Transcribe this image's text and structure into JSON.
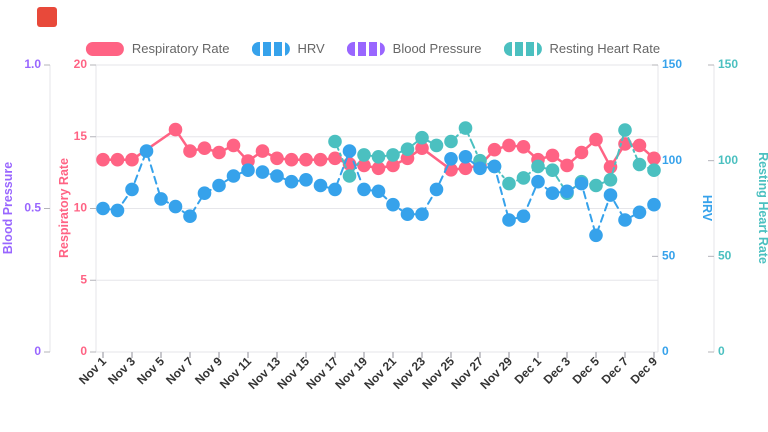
{
  "page": {
    "background": "#ffffff"
  },
  "indicator": {
    "color": "#e8493a"
  },
  "legend_position": "top",
  "chart_data": {
    "type": "line",
    "x": [
      "Nov 1",
      "Nov 2",
      "Nov 3",
      "Nov 4",
      "Nov 5",
      "Nov 6",
      "Nov 7",
      "Nov 8",
      "Nov 9",
      "Nov 10",
      "Nov 11",
      "Nov 12",
      "Nov 13",
      "Nov 14",
      "Nov 15",
      "Nov 16",
      "Nov 17",
      "Nov 18",
      "Nov 19",
      "Nov 20",
      "Nov 21",
      "Nov 22",
      "Nov 23",
      "Nov 24",
      "Nov 25",
      "Nov 26",
      "Nov 27",
      "Nov 28",
      "Nov 29",
      "Nov 30",
      "Dec 1",
      "Dec 2",
      "Dec 3",
      "Dec 4",
      "Dec 5",
      "Dec 6",
      "Dec 7",
      "Dec 8",
      "Dec 9"
    ],
    "x_tick_labels": [
      "Nov 1",
      "Nov 3",
      "Nov 5",
      "Nov 7",
      "Nov 9",
      "Nov 11",
      "Nov 13",
      "Nov 15",
      "Nov 17",
      "Nov 19",
      "Nov 21",
      "Nov 23",
      "Nov 25",
      "Nov 27",
      "Nov 29",
      "Dec 1",
      "Dec 3",
      "Dec 5",
      "Dec 7",
      "Dec 9"
    ],
    "grid": true,
    "series": [
      {
        "name": "Respiratory Rate",
        "color": "#ff6384",
        "line": "solid",
        "axis": "respiratory_rate",
        "values": [
          13.4,
          13.4,
          13.4,
          null,
          null,
          15.5,
          14.0,
          14.2,
          13.9,
          14.4,
          13.3,
          14.0,
          13.5,
          13.4,
          13.4,
          13.4,
          13.5,
          13.1,
          13.0,
          12.8,
          13.0,
          13.5,
          14.2,
          null,
          12.7,
          12.8,
          13.0,
          14.1,
          14.4,
          14.3,
          13.4,
          13.7,
          13.0,
          13.9,
          14.8,
          12.9,
          14.5,
          14.4,
          13.5
        ]
      },
      {
        "name": "HRV",
        "color": "#36a2eb",
        "line": "dashed",
        "axis": "hrv",
        "values": [
          75,
          74,
          85,
          105,
          80,
          76,
          71,
          83,
          87,
          92,
          95,
          94,
          92,
          89,
          90,
          87,
          85,
          105,
          85,
          84,
          77,
          72,
          72,
          85,
          101,
          102,
          96,
          97,
          69,
          71,
          89,
          83,
          84,
          88,
          61,
          82,
          69,
          73,
          77
        ]
      },
      {
        "name": "Blood Pressure",
        "color": "#9966ff",
        "line": "dashed",
        "axis": "blood_pressure",
        "values": []
      },
      {
        "name": "Resting Heart Rate",
        "color": "#4bc0c0",
        "line": "dashdot",
        "axis": "resting_heart_rate",
        "values": [
          null,
          null,
          null,
          null,
          null,
          null,
          null,
          null,
          null,
          null,
          null,
          null,
          null,
          null,
          null,
          null,
          110,
          92,
          103,
          102,
          103,
          106,
          112,
          108,
          110,
          117,
          100,
          97,
          88,
          91,
          97,
          95,
          83,
          89,
          87,
          90,
          116,
          98,
          95
        ]
      }
    ],
    "axes": {
      "blood_pressure": {
        "title": "Blood Pressure",
        "color": "#9966ff",
        "side": "left",
        "range": [
          0,
          1
        ],
        "ticks": [
          0,
          0.5,
          1
        ],
        "tick_labels": [
          "0",
          "0.5",
          "1.0"
        ]
      },
      "respiratory_rate": {
        "title": "Respiratory Rate",
        "color": "#ff6384",
        "side": "left",
        "range": [
          0,
          20
        ],
        "ticks": [
          0,
          5,
          10,
          15,
          20
        ],
        "tick_labels": [
          "0",
          "5",
          "10",
          "15",
          "20"
        ]
      },
      "hrv": {
        "title": "HRV",
        "color": "#36a2eb",
        "side": "right",
        "range": [
          0,
          150
        ],
        "ticks": [
          0,
          50,
          100,
          150
        ],
        "tick_labels": [
          "0",
          "50",
          "100",
          "150"
        ]
      },
      "resting_heart_rate": {
        "title": "Resting Heart Rate",
        "color": "#4bc0c0",
        "side": "right",
        "range": [
          0,
          150
        ],
        "ticks": [
          0,
          50,
          100,
          150
        ],
        "tick_labels": [
          "0",
          "50",
          "100",
          "150"
        ]
      }
    }
  }
}
